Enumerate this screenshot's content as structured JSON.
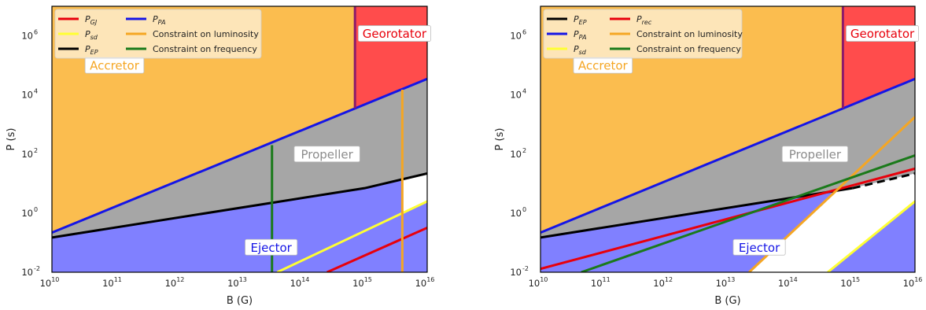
{
  "chart_data": [
    {
      "type": "area",
      "panel": "left",
      "xlabel": "B (G)",
      "ylabel": "P (s)",
      "xscale": "log",
      "yscale": "log",
      "xlim": [
        10000000000.0,
        1e+16
      ],
      "ylim": [
        0.01,
        10000000.0
      ],
      "x_tick_labels": [
        "10",
        "10",
        "10",
        "10",
        "10",
        "10",
        "10"
      ],
      "x_tick_exponents": [
        "10",
        "11",
        "12",
        "13",
        "14",
        "15",
        "16"
      ],
      "y_tick_labels": [
        "10",
        "10",
        "10",
        "10",
        "10"
      ],
      "y_tick_exponents": [
        "-2",
        "0",
        "2",
        "4",
        "6"
      ],
      "grid": false,
      "legend_position": "top-left",
      "legend": [
        {
          "label": "P",
          "sub": "GJ",
          "color": "#e8000b"
        },
        {
          "label": "P",
          "sub": "sd",
          "color": "#ffff33"
        },
        {
          "label": "P",
          "sub": "EP",
          "color": "#000000"
        },
        {
          "label": "P",
          "sub": "PA",
          "color": "#1515e6"
        },
        {
          "label": "Constraint on luminosity",
          "sub": "",
          "color": "#f5a623"
        },
        {
          "label": "Constraint on frequency",
          "sub": "",
          "color": "#1a7a1a"
        }
      ],
      "regions": [
        {
          "label": "Accretor",
          "color": "#fbbd4f",
          "text_color": "#f5a623",
          "x": 100000000000.0,
          "y": 100000.0
        },
        {
          "label": "Georotator",
          "color": "#ff4c4c",
          "text_color": "#e8000b",
          "x": 3000000000000000.0,
          "y": 1200000.0
        },
        {
          "label": "Propeller",
          "color": "#a6a6a6",
          "text_color": "#8c8c8c",
          "x": 250000000000000.0,
          "y": 100
        },
        {
          "label": "Ejector",
          "color": "#8080ff",
          "text_color": "#1515e6",
          "x": 32000000000000.0,
          "y": 0.07
        }
      ],
      "series": [
        {
          "name": "P_GJ",
          "x": [
            250000000000000.0,
            1e+16
          ],
          "y": [
            0.01,
            0.32
          ]
        },
        {
          "name": "P_sd",
          "x": [
            40000000000000.0,
            1e+16
          ],
          "y": [
            0.01,
            2.5
          ]
        },
        {
          "name": "P_EP",
          "x": [
            10000000000.0,
            1000000000000000.0,
            1e+16
          ],
          "y": [
            0.15,
            7,
            22
          ]
        },
        {
          "name": "P_PA",
          "x": [
            10000000000.0,
            1e+16
          ],
          "y": [
            0.22,
            35000.0
          ]
        },
        {
          "name": "Georotator boundary",
          "x": [
            700000000000000.0,
            700000000000000.0
          ],
          "y": [
            3500,
            10000000.0
          ]
        },
        {
          "name": "Constraint on luminosity",
          "x": [
            4000000000000000.0,
            4000000000000000.0
          ],
          "y": [
            0.01,
            15000.0
          ]
        },
        {
          "name": "Constraint on frequency",
          "x": [
            33000000000000.0,
            33000000000000.0
          ],
          "y": [
            0.01,
            200
          ]
        }
      ]
    },
    {
      "type": "area",
      "panel": "right",
      "xlabel": "B (G)",
      "ylabel": "P (s)",
      "xscale": "log",
      "yscale": "log",
      "xlim": [
        10000000000.0,
        1e+16
      ],
      "ylim": [
        0.01,
        10000000.0
      ],
      "x_tick_labels": [
        "10",
        "10",
        "10",
        "10",
        "10",
        "10",
        "10"
      ],
      "x_tick_exponents": [
        "10",
        "11",
        "12",
        "13",
        "14",
        "15",
        "16"
      ],
      "y_tick_labels": [
        "10",
        "10",
        "10",
        "10",
        "10"
      ],
      "y_tick_exponents": [
        "-2",
        "0",
        "2",
        "4",
        "6"
      ],
      "grid": false,
      "legend_position": "top-left",
      "legend": [
        {
          "label": "P",
          "sub": "EP",
          "color": "#000000"
        },
        {
          "label": "P",
          "sub": "PA",
          "color": "#1515e6"
        },
        {
          "label": "P",
          "sub": "sd",
          "color": "#ffff33"
        },
        {
          "label": "P",
          "sub": "rec",
          "color": "#e8000b"
        },
        {
          "label": "Constraint on luminosity",
          "sub": "",
          "color": "#f5a623"
        },
        {
          "label": "Constraint on frequency",
          "sub": "",
          "color": "#1a7a1a"
        }
      ],
      "regions": [
        {
          "label": "Accretor",
          "color": "#fbbd4f",
          "text_color": "#f5a623",
          "x": 100000000000.0,
          "y": 100000.0
        },
        {
          "label": "Georotator",
          "color": "#ff4c4c",
          "text_color": "#e8000b",
          "x": 3000000000000000.0,
          "y": 1200000.0
        },
        {
          "label": "Propeller",
          "color": "#a6a6a6",
          "text_color": "#8c8c8c",
          "x": 250000000000000.0,
          "y": 100
        },
        {
          "label": "Ejector",
          "color": "#8080ff",
          "text_color": "#1515e6",
          "x": 32000000000000.0,
          "y": 0.07
        }
      ],
      "series": [
        {
          "name": "P_EP",
          "x": [
            10000000000.0,
            1000000000000000.0,
            1e+16
          ],
          "y": [
            0.15,
            7,
            22
          ]
        },
        {
          "name": "P_PA",
          "x": [
            10000000000.0,
            1e+16
          ],
          "y": [
            0.22,
            35000.0
          ]
        },
        {
          "name": "P_sd",
          "x": [
            400000000000000.0,
            1e+16
          ],
          "y": [
            0.01,
            2.5
          ]
        },
        {
          "name": "P_rec",
          "x": [
            10000000000.0,
            1e+16
          ],
          "y": [
            0.013,
            32
          ]
        },
        {
          "name": "Constraint on luminosity",
          "x": [
            22000000000000.0,
            1e+16
          ],
          "y": [
            0.01,
            1800
          ]
        },
        {
          "name": "Constraint on frequency",
          "x": [
            45000000000.0,
            1e+16
          ],
          "y": [
            0.01,
            90
          ]
        },
        {
          "name": "Georotator boundary",
          "x": [
            700000000000000.0,
            700000000000000.0
          ],
          "y": [
            3500,
            10000000.0
          ]
        }
      ]
    }
  ]
}
